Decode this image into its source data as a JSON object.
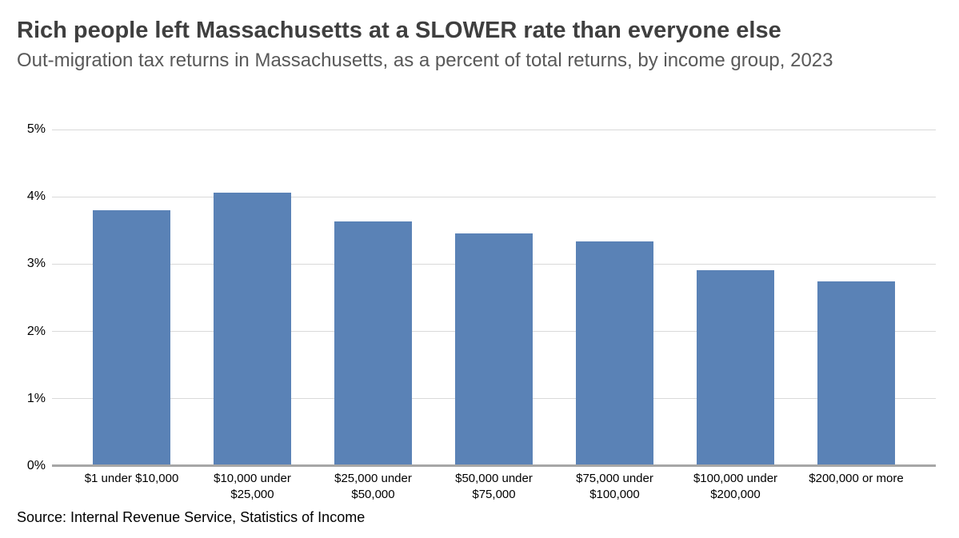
{
  "header": {
    "title": "Rich people left Massachusetts at a SLOWER rate than everyone else",
    "subtitle": "Out-migration tax returns in Massachusetts, as a percent of total returns, by income group, 2023"
  },
  "footer": {
    "source": "Source: Internal Revenue Service, Statistics of Income"
  },
  "chart_data": {
    "type": "bar",
    "title": "Rich people left Massachusetts at a SLOWER rate than everyone else",
    "subtitle": "Out-migration tax returns in Massachusetts, as a percent of total returns, by income group, 2023",
    "categories": [
      "$1 under $10,000",
      "$10,000 under $25,000",
      "$25,000 under $50,000",
      "$50,000 under $75,000",
      "$75,000 under $100,000",
      "$100,000 under $200,000",
      "$200,000 or more"
    ],
    "values": [
      3.8,
      4.06,
      3.63,
      3.46,
      3.34,
      2.91,
      2.74
    ],
    "value_unit": "percent of total returns",
    "ylim": [
      0,
      5
    ],
    "y_ticks": [
      "0%",
      "1%",
      "2%",
      "3%",
      "4%",
      "5%"
    ],
    "grid": "horizontal",
    "legend": "none",
    "bar_color": "#5a82b6",
    "gridline_color": "#d9d9d9",
    "axis_line_color": "#a6a6a6",
    "source": "Source: Internal Revenue Service, Statistics of Income"
  }
}
